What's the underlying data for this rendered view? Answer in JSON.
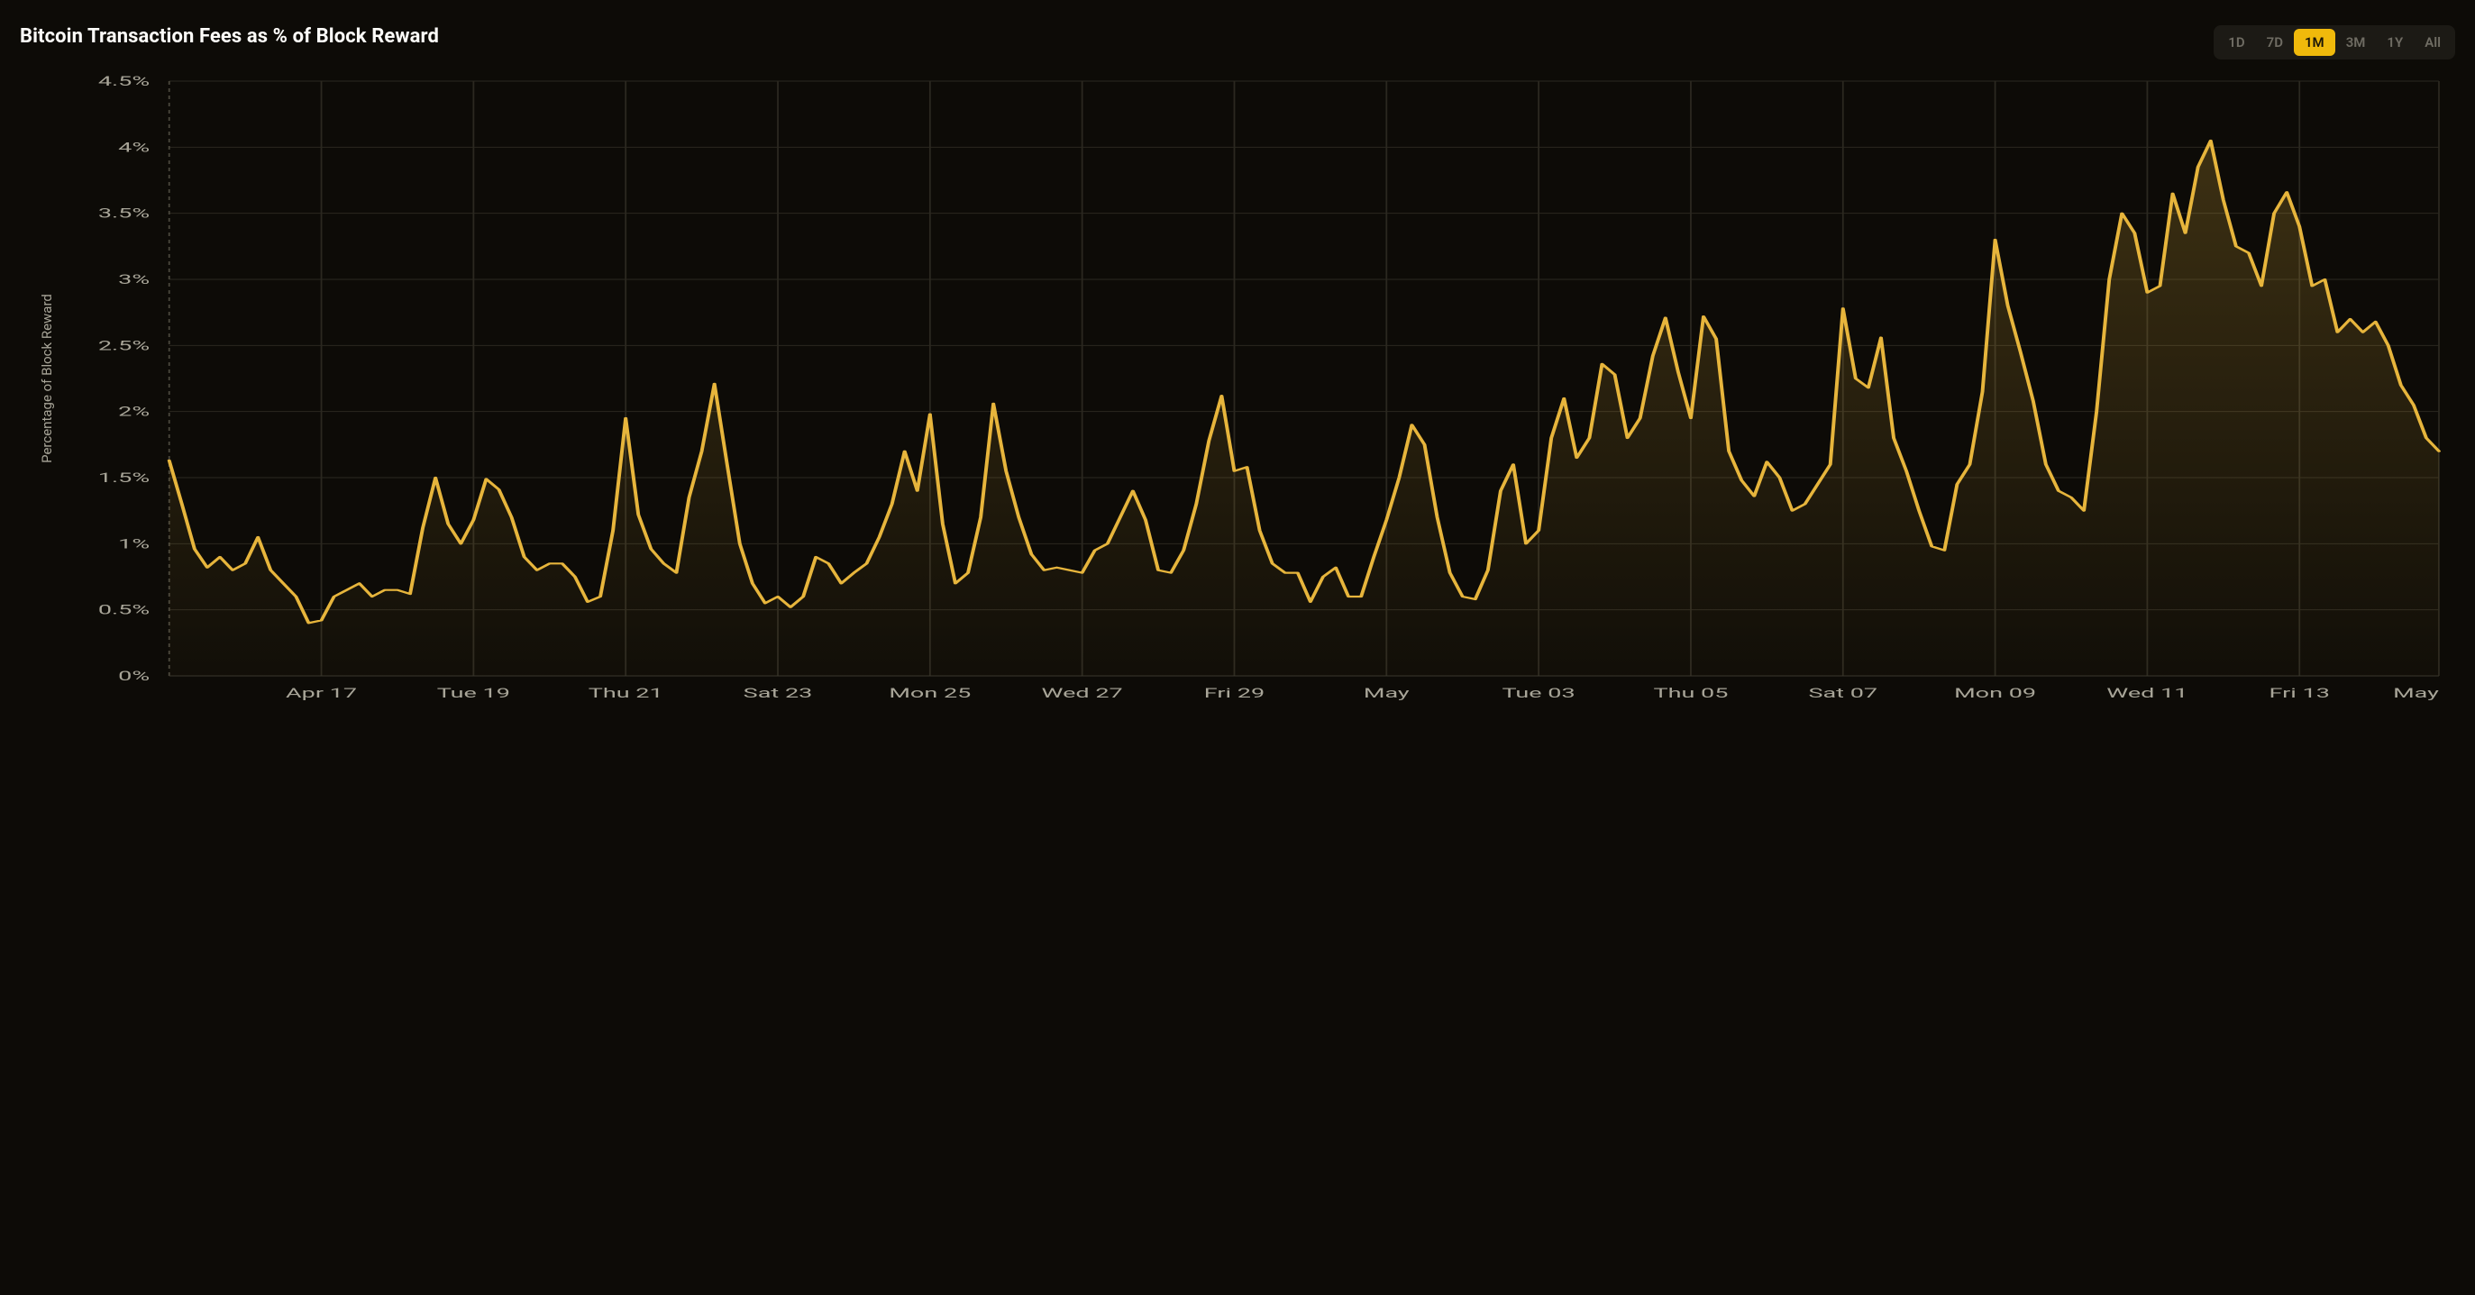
{
  "title": "Bitcoin Transaction Fees as % of Block Reward",
  "range_selector": {
    "options": [
      "1D",
      "7D",
      "1M",
      "3M",
      "1Y",
      "All"
    ],
    "active_index": 2
  },
  "chart": {
    "type": "area",
    "ylabel": "Percentage of Block Reward",
    "ylim": [
      0,
      4.5
    ],
    "ytick_step": 0.5,
    "ytick_suffix": "%",
    "background_color": "#0d0b07",
    "grid_color": "#2b2820",
    "axis_text_color": "#a8a598",
    "line_color": "#e7b53c",
    "fill_gradient_top": "rgba(231,181,60,0.22)",
    "fill_gradient_bottom": "rgba(231,181,60,0.02)",
    "line_width": 2.2,
    "title_fontsize": 22,
    "axis_fontsize": 15,
    "x_tick_labels": [
      "Apr 17",
      "Tue 19",
      "Thu 21",
      "Sat 23",
      "Mon 25",
      "Wed 27",
      "Fri 29",
      "May",
      "Tue 03",
      "Thu 05",
      "Sat 07",
      "Mon 09",
      "Wed 11",
      "Fri 13",
      "May"
    ],
    "x_tick_positions": [
      12,
      24,
      36,
      48,
      60,
      72,
      84,
      96,
      108,
      120,
      132,
      144,
      156,
      168,
      179
    ],
    "series": {
      "y": [
        1.63,
        1.3,
        0.96,
        0.82,
        0.9,
        0.8,
        0.85,
        1.05,
        0.8,
        0.7,
        0.6,
        0.4,
        0.42,
        0.6,
        0.65,
        0.7,
        0.6,
        0.65,
        0.65,
        0.62,
        1.12,
        1.5,
        1.15,
        1.0,
        1.18,
        1.49,
        1.41,
        1.2,
        0.9,
        0.8,
        0.85,
        0.85,
        0.75,
        0.56,
        0.6,
        1.1,
        1.95,
        1.22,
        0.96,
        0.85,
        0.78,
        1.35,
        1.7,
        2.21,
        1.6,
        1.0,
        0.7,
        0.55,
        0.6,
        0.52,
        0.6,
        0.9,
        0.85,
        0.7,
        0.78,
        0.85,
        1.05,
        1.3,
        1.7,
        1.4,
        1.98,
        1.15,
        0.7,
        0.78,
        1.2,
        2.06,
        1.55,
        1.2,
        0.92,
        0.8,
        0.82,
        0.8,
        0.78,
        0.95,
        1.0,
        1.2,
        1.4,
        1.18,
        0.8,
        0.78,
        0.95,
        1.3,
        1.78,
        2.12,
        1.55,
        1.58,
        1.1,
        0.85,
        0.78,
        0.78,
        0.56,
        0.75,
        0.82,
        0.6,
        0.6,
        0.9,
        1.18,
        1.5,
        1.9,
        1.75,
        1.2,
        0.78,
        0.6,
        0.58,
        0.8,
        1.4,
        1.6,
        1.0,
        1.1,
        1.8,
        2.1,
        1.65,
        1.8,
        2.36,
        2.28,
        1.8,
        1.95,
        2.42,
        2.71,
        2.3,
        1.95,
        2.72,
        2.55,
        1.7,
        1.48,
        1.36,
        1.62,
        1.5,
        1.25,
        1.3,
        1.45,
        1.6,
        2.78,
        2.25,
        2.18,
        2.56,
        1.8,
        1.55,
        1.25,
        0.98,
        0.95,
        1.45,
        1.6,
        2.15,
        3.3,
        2.8,
        2.45,
        2.08,
        1.6,
        1.4,
        1.35,
        1.25,
        2.0,
        3.0,
        3.5,
        3.35,
        2.9,
        2.95,
        3.65,
        3.35,
        3.85,
        4.05,
        3.6,
        3.25,
        3.2,
        2.95,
        3.5,
        3.66,
        3.4,
        2.95,
        3.0,
        2.6,
        2.7,
        2.6,
        2.68,
        2.5,
        2.2,
        2.05,
        1.8,
        1.7
      ]
    }
  }
}
